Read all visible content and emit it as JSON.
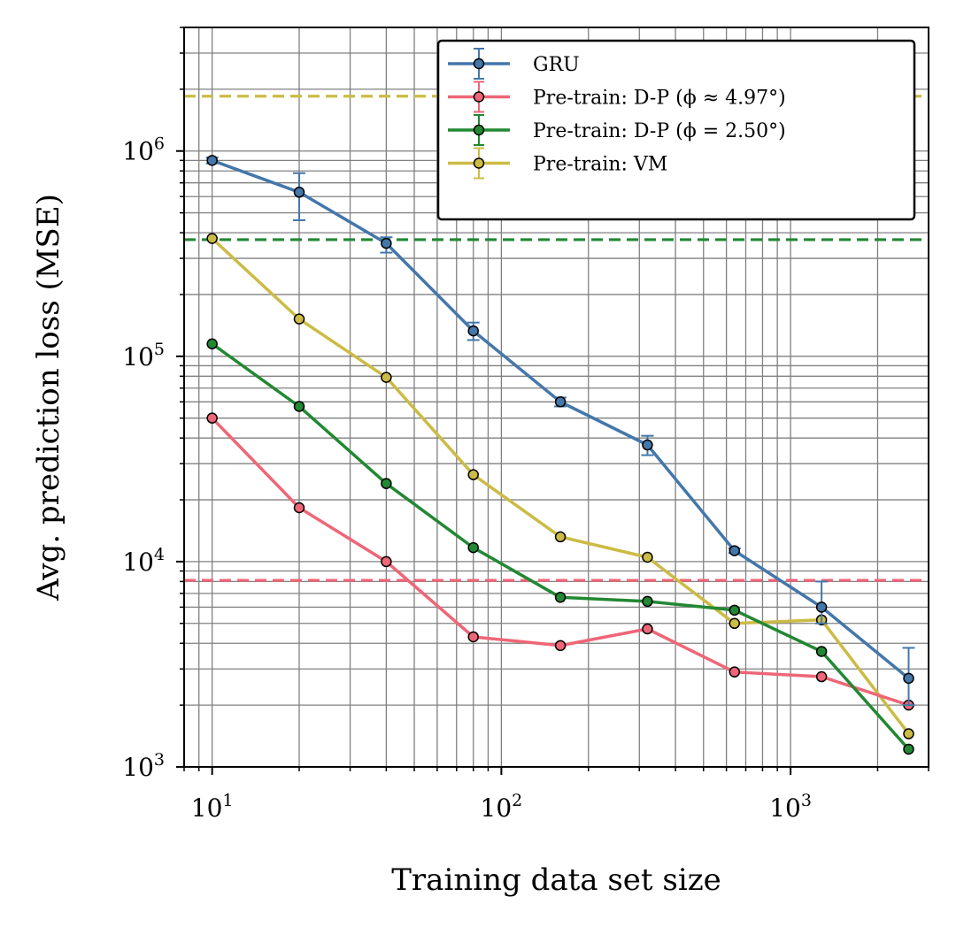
{
  "chart_data": {
    "type": "line",
    "xscale": "log",
    "yscale": "log",
    "xlabel": "Training data set size",
    "ylabel": "Avg. prediction loss (MSE)",
    "xlim": [
      8,
      3000
    ],
    "ylim": [
      1000,
      4000000
    ],
    "grid": true,
    "legend_position": "top-right",
    "x_ticks": [
      {
        "value": 10,
        "base": "10",
        "exp": "1"
      },
      {
        "value": 100,
        "base": "10",
        "exp": "2"
      },
      {
        "value": 1000,
        "base": "10",
        "exp": "3"
      }
    ],
    "y_ticks": [
      {
        "value": 1000,
        "base": "10",
        "exp": "3"
      },
      {
        "value": 10000,
        "base": "10",
        "exp": "4"
      },
      {
        "value": 100000,
        "base": "10",
        "exp": "5"
      },
      {
        "value": 1000000,
        "base": "10",
        "exp": "6"
      }
    ],
    "x": [
      10,
      20,
      40,
      80,
      160,
      320,
      640,
      1280,
      2560
    ],
    "series": [
      {
        "name": "GRU",
        "color": "#4477aa",
        "values": [
          900000,
          630000,
          355000,
          133000,
          60000,
          37000,
          11300,
          6000,
          2700
        ],
        "err_low": [
          870000,
          460000,
          320000,
          120000,
          57000,
          33000,
          11000,
          5000,
          2000
        ],
        "err_high": [
          930000,
          780000,
          380000,
          146000,
          63000,
          41000,
          11600,
          8000,
          3800
        ],
        "baseline": null
      },
      {
        "name": "Pre-train: D-P (ϕ ≈ 4.97°)",
        "color": "#ee6677",
        "values": [
          50000,
          18300,
          10000,
          4300,
          3900,
          4700,
          2900,
          2750,
          2000
        ],
        "baseline": 8100
      },
      {
        "name": "Pre-train: D-P (ϕ = 2.50°)",
        "color": "#228833",
        "values": [
          115000,
          57000,
          24000,
          11700,
          6700,
          6400,
          5800,
          3650,
          1220
        ],
        "baseline": 370000
      },
      {
        "name": "Pre-train: VM",
        "color": "#ccbb44",
        "values": [
          375000,
          152000,
          79000,
          26500,
          13200,
          10500,
          5000,
          5200,
          1450
        ],
        "baseline": 1850000
      }
    ]
  }
}
